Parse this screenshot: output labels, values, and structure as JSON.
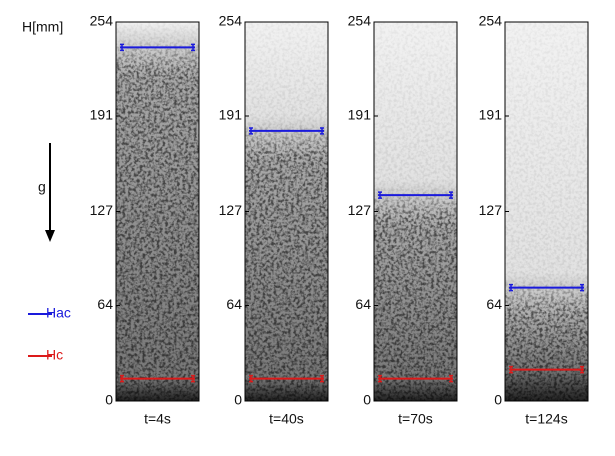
{
  "chart_data": [
    {
      "type": "level",
      "ylabel": "H[mm]",
      "annotation": "g",
      "xlabel": "t=4s",
      "ylim": [
        0,
        254
      ],
      "yticks": [
        0,
        64,
        127,
        191,
        254
      ],
      "series": [
        {
          "name": "Hac",
          "color": "#1a1adc",
          "values": [
            237
          ],
          "errors": [
            2
          ]
        },
        {
          "name": "Hc",
          "color": "#dc1a1a",
          "values": [
            15
          ],
          "errors": [
            2
          ]
        }
      ]
    },
    {
      "type": "level",
      "xlabel": "t=40s",
      "ylim": [
        0,
        254
      ],
      "yticks": [
        0,
        64,
        127,
        191,
        254
      ],
      "series": [
        {
          "color": "#1a1adc",
          "values": [
            181
          ],
          "errors": [
            2
          ]
        },
        {
          "color": "#dc1a1a",
          "values": [
            15
          ],
          "errors": [
            2
          ]
        }
      ]
    },
    {
      "type": "level",
      "xlabel": "t=70s",
      "ylim": [
        0,
        254
      ],
      "yticks": [
        0,
        64,
        127,
        191,
        254
      ],
      "series": [
        {
          "color": "#1a1adc",
          "values": [
            138
          ],
          "errors": [
            2
          ]
        },
        {
          "color": "#dc1a1a",
          "values": [
            15
          ],
          "errors": [
            2
          ]
        }
      ]
    },
    {
      "type": "level",
      "xlabel": "t=124s",
      "ylim": [
        0,
        254
      ],
      "yticks": [
        0,
        64,
        127,
        191,
        254
      ],
      "series": [
        {
          "color": "#1a1adc",
          "values": [
            76
          ],
          "errors": [
            2
          ]
        },
        {
          "color": "#dc1a1a",
          "values": [
            21
          ],
          "errors": [
            2
          ]
        }
      ]
    }
  ]
}
